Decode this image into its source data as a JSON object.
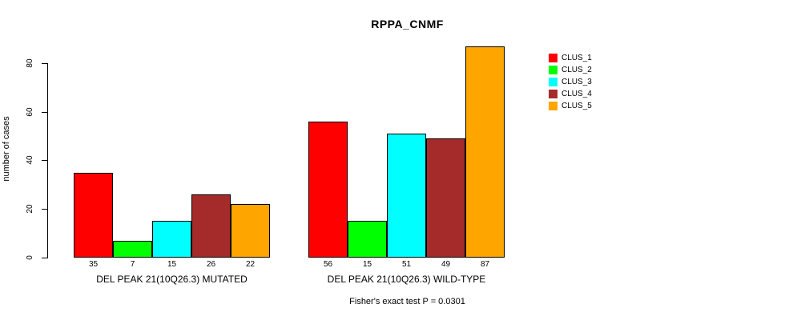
{
  "chart_data": {
    "type": "bar",
    "title": "RPPA_CNMF",
    "xlabel": "",
    "ylabel": "number of cases",
    "ylim": [
      0,
      88
    ],
    "yticks": [
      0,
      20,
      40,
      60,
      80
    ],
    "grid": false,
    "legend_position": "right",
    "series_names": [
      "CLUS_1",
      "CLUS_2",
      "CLUS_3",
      "CLUS_4",
      "CLUS_5"
    ],
    "series_colors": [
      "#ff0000",
      "#00ff00",
      "#00ffff",
      "#a52a2a",
      "#ffa500"
    ],
    "categories": [
      "DEL PEAK 21(10Q26.3) MUTATED",
      "DEL PEAK 21(10Q26.3) WILD-TYPE"
    ],
    "groups": [
      {
        "label": "DEL PEAK 21(10Q26.3) MUTATED",
        "values": [
          35,
          7,
          15,
          26,
          22
        ]
      },
      {
        "label": "DEL PEAK 21(10Q26.3) WILD-TYPE",
        "values": [
          56,
          15,
          51,
          49,
          87
        ]
      }
    ],
    "annotation": "Fisher's exact test P = 0.0301",
    "colors": {
      "axis": "#000000",
      "text": "#000000",
      "background": "#ffffff"
    }
  }
}
